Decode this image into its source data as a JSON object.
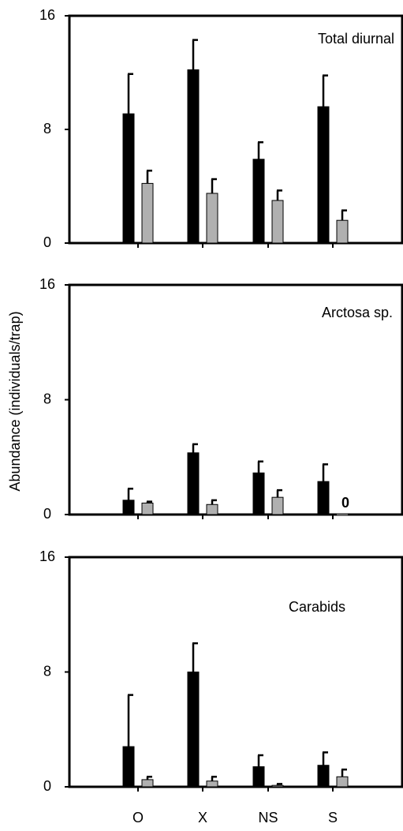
{
  "chart_data": [
    {
      "type": "bar",
      "title": "Total diurnal",
      "categories": [
        null,
        null,
        null,
        null
      ],
      "series": [
        {
          "color": "#000000",
          "values": [
            9.1,
            12.2,
            5.9,
            9.6
          ],
          "errors": [
            2.8,
            2.1,
            1.2,
            2.2
          ]
        },
        {
          "color": "#b0b0b0",
          "values": [
            4.2,
            3.5,
            3.0,
            1.6
          ],
          "errors": [
            0.9,
            1.0,
            0.7,
            0.7
          ]
        }
      ],
      "ylim": [
        0,
        16
      ],
      "yticks": [
        0,
        8,
        16
      ]
    },
    {
      "type": "bar",
      "title": "Arctosa sp.",
      "ylabel": "Abundance (individuals/trap)",
      "categories": [
        null,
        null,
        null,
        null
      ],
      "series": [
        {
          "color": "#000000",
          "values": [
            1.0,
            4.3,
            2.9,
            2.3
          ],
          "errors": [
            0.8,
            0.6,
            0.8,
            1.2
          ]
        },
        {
          "color": "#b0b0b0",
          "values": [
            0.8,
            0.7,
            1.2,
            0
          ],
          "errors": [
            0.1,
            0.3,
            0.5,
            null
          ],
          "value_labels": [
            null,
            null,
            null,
            "0"
          ]
        }
      ],
      "ylim": [
        0,
        16
      ],
      "yticks": [
        0,
        8,
        16
      ]
    },
    {
      "type": "bar",
      "title": "Carabids",
      "categories": [
        "O",
        "X",
        "NS",
        "S"
      ],
      "series": [
        {
          "color": "#000000",
          "values": [
            2.8,
            8.0,
            1.4,
            1.5
          ],
          "errors": [
            3.6,
            2.0,
            0.8,
            0.9
          ]
        },
        {
          "color": "#b0b0b0",
          "values": [
            0.5,
            0.4,
            0.1,
            0.7
          ],
          "errors": [
            0.2,
            0.3,
            0.1,
            0.5
          ]
        }
      ],
      "ylim": [
        0,
        16
      ],
      "yticks": [
        0,
        8,
        16
      ]
    }
  ]
}
